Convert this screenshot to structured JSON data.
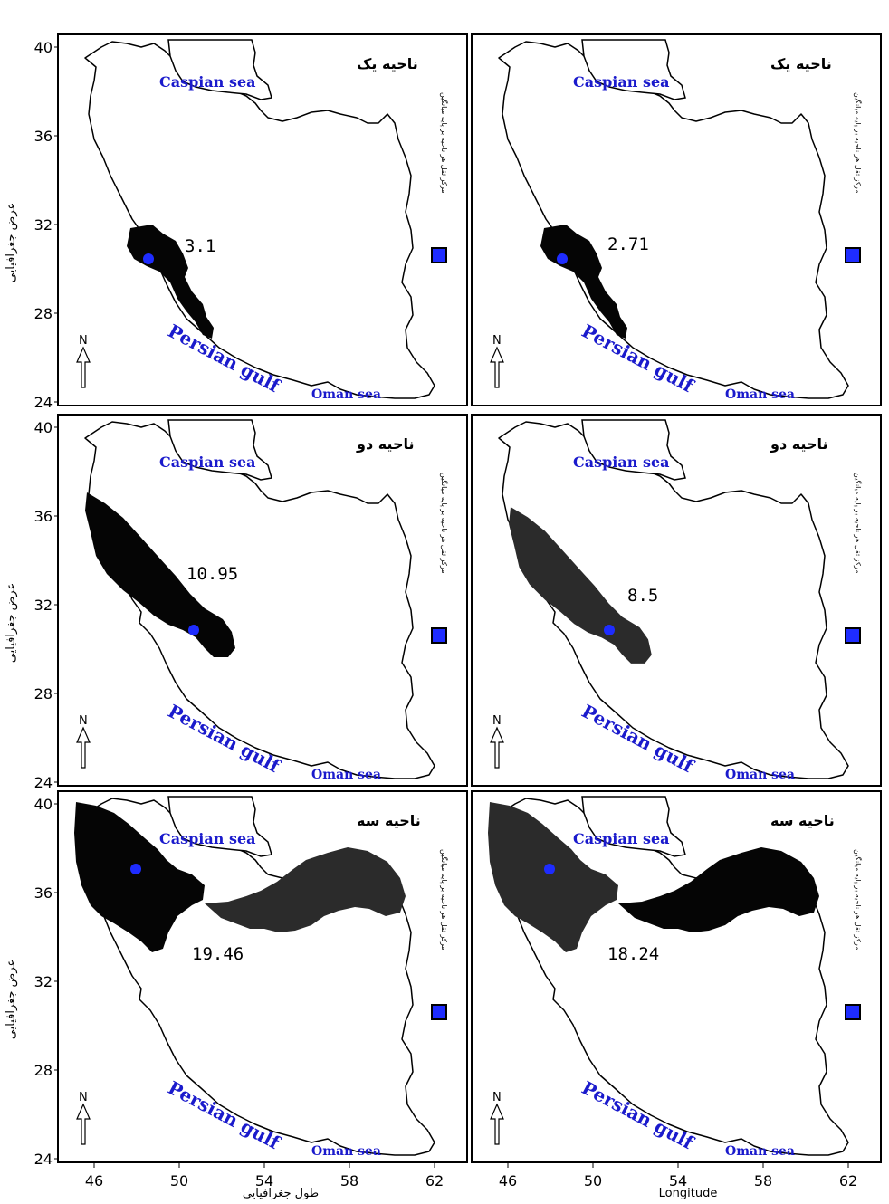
{
  "map_labels": {
    "caspian": "Caspian sea",
    "persian_gulf": "Persian gulf",
    "oman": "Oman sea",
    "north": "N",
    "legend_text": "ﻣﺮﮐﺰ ﺛﻘﻞ ﻫﺮ ﻧﺎﺣﻴﻪ ﺑﺮ ﭘﺎﯾﻪ ﻣﻴﺎﻧﮕﻴﻦ"
  },
  "axes": {
    "x_ticks": [
      "46",
      "50",
      "54",
      "58",
      "62"
    ],
    "y_ticks": [
      "40",
      "36",
      "32",
      "28",
      "24"
    ],
    "x_title_left": "طول جغرافیایی",
    "x_title_right": "Longitude",
    "y_title": "عرض جغرافیایی"
  },
  "colors": {
    "frame": "#000000",
    "region_dark": "#050505",
    "region_gray": "#2b2b2b",
    "centroid": "#1e2cff",
    "label_blue": "#1a1acc"
  },
  "panels": [
    {
      "title": "ناحیه یک",
      "value": "3.1"
    },
    {
      "title": "ناحیه یک",
      "value": "2.71"
    },
    {
      "title": "ناحیه دو",
      "value": "10.95"
    },
    {
      "title": "ناحیه دو",
      "value": "8.5"
    },
    {
      "title": "ناحیه سه",
      "value": "19.46"
    },
    {
      "title": "ناحیه سه",
      "value": "18.24"
    }
  ]
}
